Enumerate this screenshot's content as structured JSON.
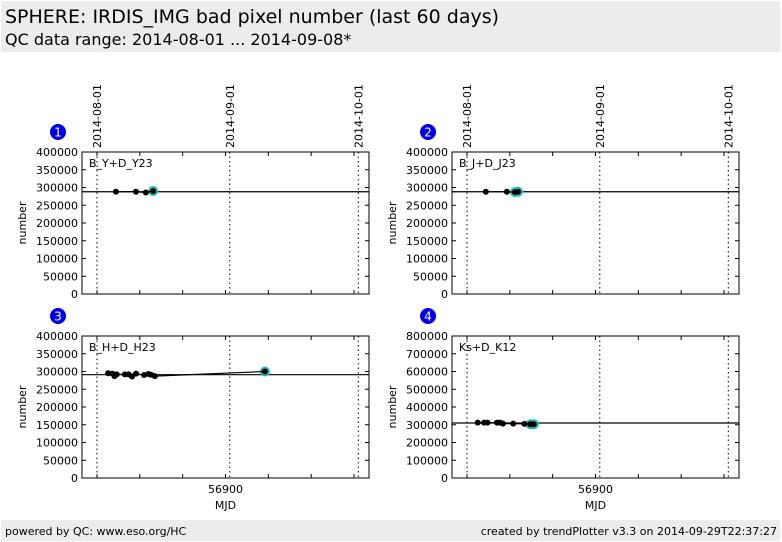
{
  "header": {
    "title": "SPHERE: IRDIS_IMG bad pixel number (last 60 days)",
    "subtitle": "QC data range: 2014-08-01 ... 2014-09-08*"
  },
  "footer": {
    "left": "powered by QC: www.eso.org/HC",
    "right": "created by trendPlotter v3.3 on 2014-09-29T22:37:27"
  },
  "colors": {
    "badge": "#0000ee",
    "highlight": "#22bbbb",
    "point": "#000000"
  },
  "chart_data": [
    {
      "type": "line",
      "id": "1",
      "label": "B_Y+D_Y23",
      "xlabel": "",
      "ylabel": "number",
      "xlim": [
        56866.5,
        56933.5
      ],
      "ylim": [
        0,
        400000
      ],
      "yticks": [
        0,
        50000,
        100000,
        150000,
        200000,
        250000,
        300000,
        350000,
        400000
      ],
      "xticks_labeled": [],
      "date_lines": [
        {
          "mjd": 56870,
          "label": "2014-08-01"
        },
        {
          "mjd": 56901,
          "label": "2014-09-01"
        },
        {
          "mjd": 56931,
          "label": "2014-10-01"
        }
      ],
      "reference": 288000,
      "x": [
        56874.4,
        56879.1,
        56881.4,
        56883.1
      ],
      "y": [
        288000,
        288000,
        286000,
        290000
      ],
      "highlight_last": 1
    },
    {
      "type": "line",
      "id": "2",
      "label": "B_J+D_J23",
      "xlabel": "",
      "ylabel": "number",
      "xlim": [
        56866.5,
        56933.5
      ],
      "ylim": [
        0,
        400000
      ],
      "yticks": [
        0,
        50000,
        100000,
        150000,
        200000,
        250000,
        300000,
        350000,
        400000
      ],
      "xticks_labeled": [],
      "date_lines": [
        {
          "mjd": 56870,
          "label": "2014-08-01"
        },
        {
          "mjd": 56901,
          "label": "2014-09-01"
        },
        {
          "mjd": 56931,
          "label": "2014-10-01"
        }
      ],
      "reference": 288000,
      "x": [
        56874.4,
        56879.3,
        56881.2,
        56881.9
      ],
      "y": [
        288000,
        288000,
        287000,
        288000
      ],
      "highlight_last": 2
    },
    {
      "type": "line",
      "id": "3",
      "label": "B_H+D_H23",
      "xlabel": "MJD",
      "ylabel": "number",
      "xlim": [
        56866.5,
        56933.5
      ],
      "ylim": [
        0,
        400000
      ],
      "yticks": [
        0,
        50000,
        100000,
        150000,
        200000,
        250000,
        300000,
        350000,
        400000
      ],
      "xticks_labeled": [
        56900
      ],
      "date_lines": [
        {
          "mjd": 56870
        },
        {
          "mjd": 56901
        },
        {
          "mjd": 56931
        }
      ],
      "reference": 291000,
      "x": [
        56872.6,
        56873.6,
        56874.1,
        56874.6,
        56876.5,
        56877.4,
        56878.2,
        56879.1,
        56881,
        56882,
        56882.6,
        56883.5,
        56909.2
      ],
      "y": [
        295000,
        294000,
        287000,
        292000,
        292000,
        292000,
        286000,
        294000,
        290000,
        293000,
        291000,
        287000,
        300000
      ],
      "highlight_last": 1
    },
    {
      "type": "line",
      "id": "4",
      "label": "Ks+D_K12",
      "xlabel": "MJD",
      "ylabel": "number",
      "xlim": [
        56866.5,
        56933.5
      ],
      "ylim": [
        0,
        800000
      ],
      "yticks": [
        0,
        100000,
        200000,
        300000,
        400000,
        500000,
        600000,
        700000,
        800000
      ],
      "xticks_labeled": [
        56900
      ],
      "date_lines": [
        {
          "mjd": 56870
        },
        {
          "mjd": 56901
        },
        {
          "mjd": 56931
        }
      ],
      "reference": 310000,
      "x": [
        56872.5,
        56874,
        56874.8,
        56877,
        56877.7,
        56878.4,
        56880.8,
        56883.4,
        56884.8,
        56885.1,
        56885.6
      ],
      "y": [
        312000,
        312000,
        312000,
        312000,
        312000,
        306000,
        306000,
        305000,
        303000,
        303000,
        303000
      ],
      "highlight_last": 3
    }
  ]
}
